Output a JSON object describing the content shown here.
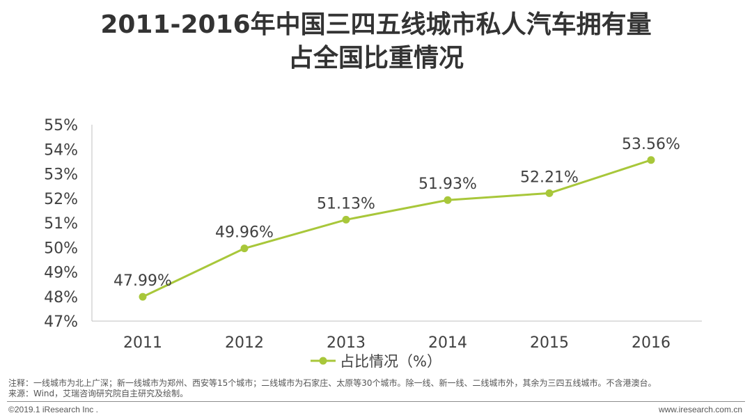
{
  "title_line1": "2011-2016年中国三四五线城市私人汽车拥有量",
  "title_line2": "占全国比重情况",
  "chart_data": {
    "type": "line",
    "categories": [
      "2011",
      "2012",
      "2013",
      "2014",
      "2015",
      "2016"
    ],
    "series": [
      {
        "name": "占比情况（%）",
        "values": [
          47.99,
          49.96,
          51.13,
          51.93,
          52.21,
          53.56
        ],
        "labels": [
          "47.99%",
          "49.96%",
          "51.13%",
          "51.93%",
          "52.21%",
          "53.56%"
        ],
        "color": "#a8c73a"
      }
    ],
    "ylim": [
      47,
      55
    ],
    "yticks": [
      "47%",
      "48%",
      "49%",
      "50%",
      "51%",
      "52%",
      "53%",
      "54%",
      "55%"
    ],
    "legend_position": "bottom",
    "grid": false
  },
  "note_line1": "注释：一线城市为北上广深；新一线城市为郑州、西安等15个城市；二线城市为石家庄、太原等30个城市。除一线、新一线、二线城市外，其余为三四五线城市。不含港澳台。",
  "note_line2": "来源：Wind，艾瑞咨询研究院自主研究及绘制。",
  "copyright": "©2019.1 iResearch Inc .",
  "website": "www.iresearch.com.cn"
}
